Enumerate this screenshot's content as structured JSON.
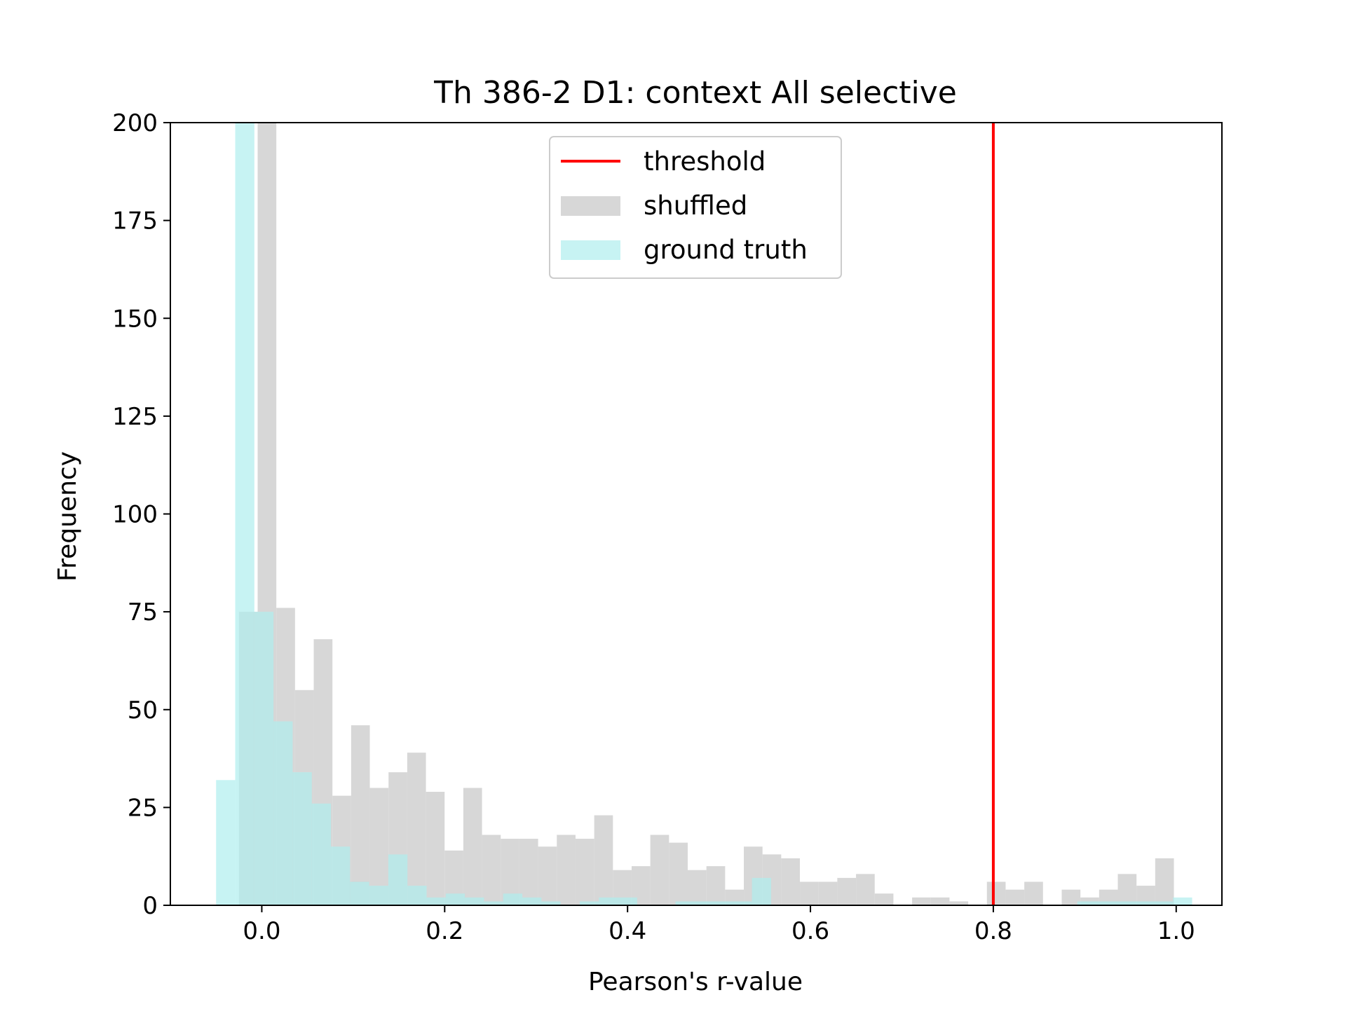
{
  "chart_data": {
    "type": "bar",
    "title": "Th 386-2 D1: context All selective",
    "xlabel": "Pearson's r-value",
    "ylabel": "Frequency",
    "xlim": [
      -0.1,
      1.05
    ],
    "ylim": [
      0,
      200
    ],
    "x_ticks": [
      {
        "value": 0.0,
        "label": "0.0"
      },
      {
        "value": 0.2,
        "label": "0.2"
      },
      {
        "value": 0.4,
        "label": "0.4"
      },
      {
        "value": 0.6,
        "label": "0.6"
      },
      {
        "value": 0.8,
        "label": "0.8"
      },
      {
        "value": 1.0,
        "label": "1.0"
      }
    ],
    "y_ticks": [
      {
        "value": 0,
        "label": "0"
      },
      {
        "value": 25,
        "label": "25"
      },
      {
        "value": 50,
        "label": "50"
      },
      {
        "value": 75,
        "label": "75"
      },
      {
        "value": 100,
        "label": "100"
      },
      {
        "value": 125,
        "label": "125"
      },
      {
        "value": 150,
        "label": "150"
      },
      {
        "value": 175,
        "label": "175"
      },
      {
        "value": 200,
        "label": "200"
      }
    ],
    "threshold": {
      "name": "threshold",
      "x": 0.8,
      "color": "#ff0000"
    },
    "series": [
      {
        "name": "shuffled",
        "color": "#d3d3d3",
        "opacity": 0.9,
        "bin_start": -0.025,
        "bin_width": 0.02045,
        "values": [
          75,
          500,
          76,
          55,
          68,
          28,
          46,
          30,
          34,
          39,
          29,
          14,
          30,
          18,
          17,
          17,
          15,
          18,
          17,
          23,
          9,
          10,
          18,
          16,
          9,
          10,
          4,
          15,
          13,
          12,
          6,
          6,
          7,
          8,
          3,
          0,
          2,
          2,
          1,
          0,
          6,
          4,
          6,
          0,
          4,
          2,
          4,
          8,
          5,
          12
        ]
      },
      {
        "name": "ground truth",
        "color": "#afeeee",
        "opacity": 0.7,
        "bin_start": -0.05,
        "bin_width": 0.02093,
        "values": [
          32,
          500,
          75,
          47,
          34,
          26,
          15,
          6,
          5,
          13,
          5,
          2,
          3,
          2,
          1,
          3,
          2,
          1,
          0,
          1,
          2,
          2,
          0,
          0,
          1,
          1,
          1,
          1,
          7,
          0,
          0,
          0,
          0,
          0,
          0,
          0,
          0,
          0,
          0,
          0,
          0,
          0,
          0,
          0,
          0,
          1,
          1,
          1,
          1,
          1,
          2
        ]
      }
    ],
    "legend": {
      "position": "top-center",
      "entries": [
        {
          "label": "threshold",
          "kind": "line",
          "color": "#ff0000"
        },
        {
          "label": "shuffled",
          "kind": "patch",
          "color": "#d3d3d3"
        },
        {
          "label": "ground truth",
          "kind": "patch",
          "color": "#afeeee"
        }
      ]
    }
  }
}
